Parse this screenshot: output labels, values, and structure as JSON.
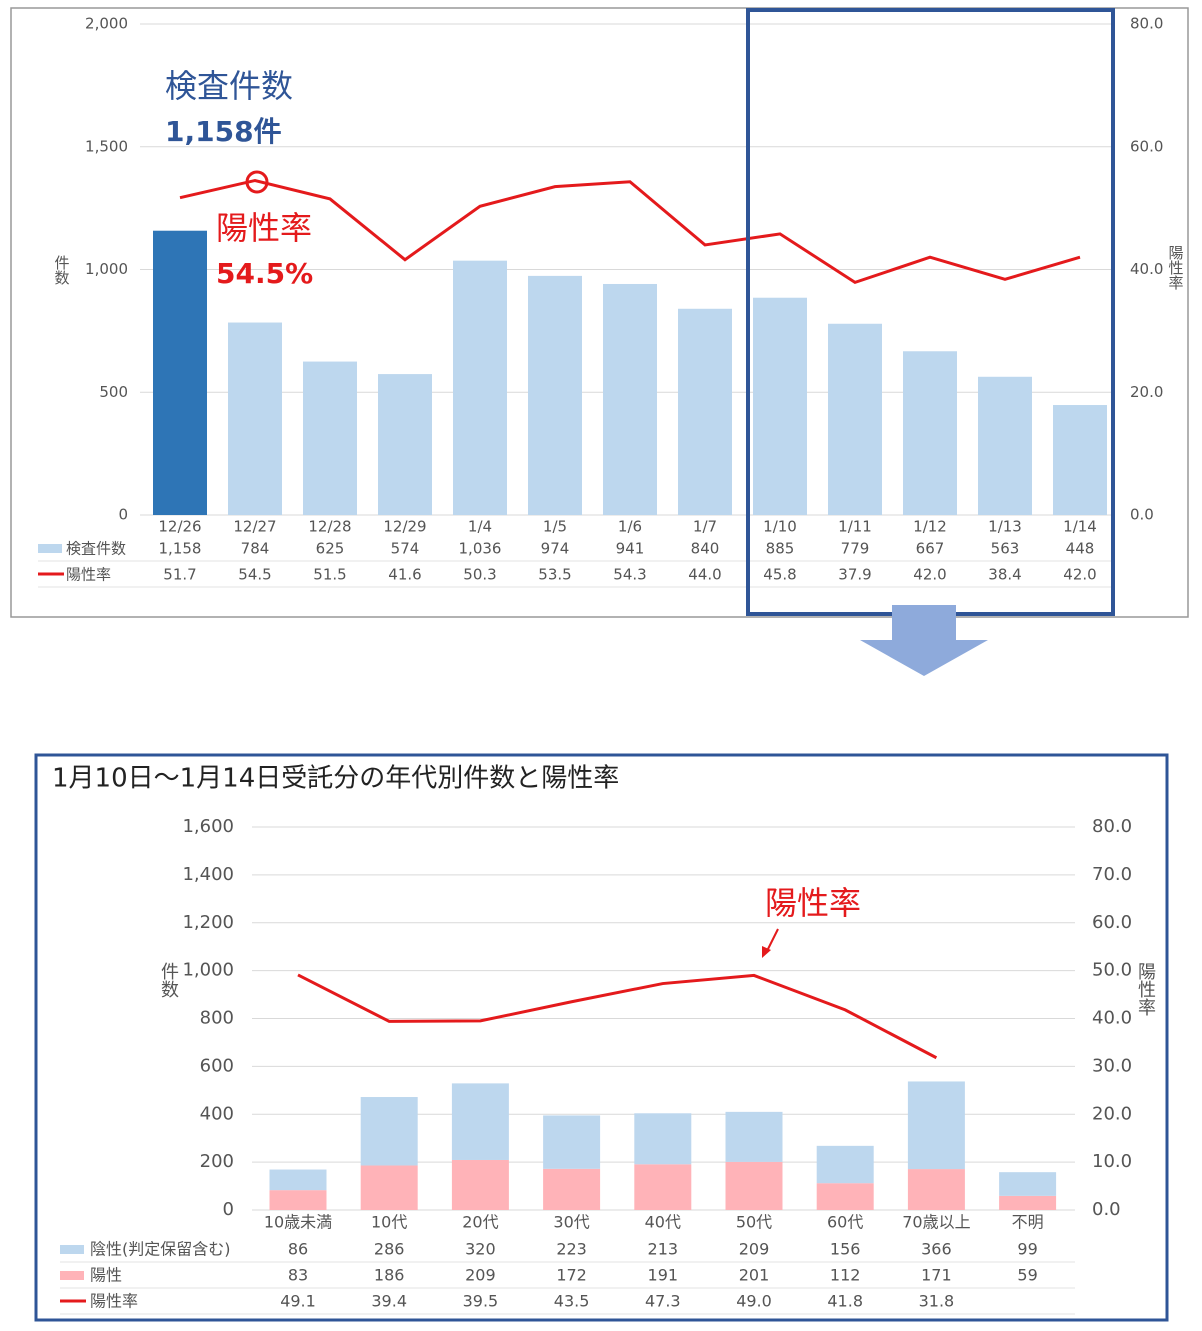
{
  "chart_data": [
    {
      "type": "bar",
      "categories": [
        "12/26",
        "12/27",
        "12/28",
        "12/29",
        "1/4",
        "1/5",
        "1/6",
        "1/7",
        "1/10",
        "1/11",
        "1/12",
        "1/13",
        "1/14"
      ],
      "series": [
        {
          "name": "検査件数",
          "type": "bar",
          "color": "#bdd7ee",
          "bar_colors": [
            "#2e75b6",
            "#bdd7ee",
            "#bdd7ee",
            "#bdd7ee",
            "#bdd7ee",
            "#bdd7ee",
            "#bdd7ee",
            "#bdd7ee",
            "#bdd7ee",
            "#bdd7ee",
            "#bdd7ee",
            "#bdd7ee",
            "#bdd7ee"
          ],
          "values": [
            1158,
            784,
            625,
            574,
            1036,
            974,
            941,
            840,
            885,
            779,
            667,
            563,
            448
          ],
          "value_labels": [
            "1,158",
            "784",
            "625",
            "574",
            "1,036",
            "974",
            "941",
            "840",
            "885",
            "779",
            "667",
            "563",
            "448"
          ]
        },
        {
          "name": "陽性率",
          "type": "line",
          "axis": "y2",
          "color": "#e41a1c",
          "values": [
            51.7,
            54.5,
            51.5,
            41.6,
            50.3,
            53.5,
            54.3,
            44.0,
            45.8,
            37.9,
            42.0,
            38.4,
            42.0
          ],
          "value_labels": [
            "51.7",
            "54.5",
            "51.5",
            "41.6",
            "50.3",
            "53.5",
            "54.3",
            "44.0",
            "45.8",
            "37.9",
            "42.0",
            "38.4",
            "42.0"
          ]
        }
      ],
      "ylabel": "件数",
      "y2label": "陽性率",
      "ylim": [
        0,
        2000
      ],
      "yticks": [
        0,
        500,
        {
          "value": 1000,
          "label": "1,000"
        },
        {
          "value": 1500,
          "label": "1,500"
        },
        {
          "value": 2000,
          "label": "2,000"
        }
      ],
      "y2lim": [
        0,
        80
      ],
      "y2ticks": [
        {
          "value": 0,
          "label": "0.0"
        },
        {
          "value": 20,
          "label": "20.0"
        },
        {
          "value": 40,
          "label": "40.0"
        },
        {
          "value": 60,
          "label": "60.0"
        },
        {
          "value": 80,
          "label": "80.0"
        }
      ],
      "grid": true,
      "annotations": [
        "検査件数",
        "1,158件",
        "陽性率",
        "54.5%"
      ]
    },
    {
      "type": "stacked_bar",
      "title": "1月10日～1月14日受託分の年代別件数と陽性率",
      "categories": [
        "10歳未満",
        "10代",
        "20代",
        "30代",
        "40代",
        "50代",
        "60代",
        "70歳以上",
        "不明"
      ],
      "series": [
        {
          "name": "陰性(判定保留含む)",
          "type": "bar",
          "color": "#bdd7ee",
          "values": [
            86,
            286,
            320,
            223,
            213,
            209,
            156,
            366,
            99
          ]
        },
        {
          "name": "陽性",
          "type": "bar",
          "color": "#ffb3b8",
          "values": [
            83,
            186,
            209,
            172,
            191,
            201,
            112,
            171,
            59
          ]
        },
        {
          "name": "陽性率",
          "type": "line",
          "axis": "y2",
          "color": "#e41a1c",
          "values": [
            49.1,
            39.4,
            39.5,
            43.5,
            47.3,
            49.0,
            41.8,
            31.8,
            null
          ],
          "value_labels": [
            "49.1",
            "39.4",
            "39.5",
            "43.5",
            "47.3",
            "49.0",
            "41.8",
            "31.8",
            null
          ]
        }
      ],
      "ylabel": "件数",
      "y2label": "陽性率",
      "ylim": [
        0,
        1600
      ],
      "yticks": [
        0,
        200,
        400,
        600,
        800,
        {
          "value": 1000,
          "label": "1,000"
        },
        {
          "value": 1200,
          "label": "1,200"
        },
        {
          "value": 1400,
          "label": "1,400"
        },
        {
          "value": 1600,
          "label": "1,600"
        }
      ],
      "y2lim": [
        0,
        80
      ],
      "y2ticks": [
        {
          "value": 0,
          "label": "0.0"
        },
        {
          "value": 10,
          "label": "10.0"
        },
        {
          "value": 20,
          "label": "20.0"
        },
        {
          "value": 30,
          "label": "30.0"
        },
        {
          "value": 40,
          "label": "40.0"
        },
        {
          "value": 50,
          "label": "50.0"
        },
        {
          "value": 60,
          "label": "60.0"
        },
        {
          "value": 70,
          "label": "70.0"
        },
        {
          "value": 80,
          "label": "80.0"
        }
      ],
      "grid": true,
      "annotations": [
        "陽性率"
      ]
    }
  ]
}
